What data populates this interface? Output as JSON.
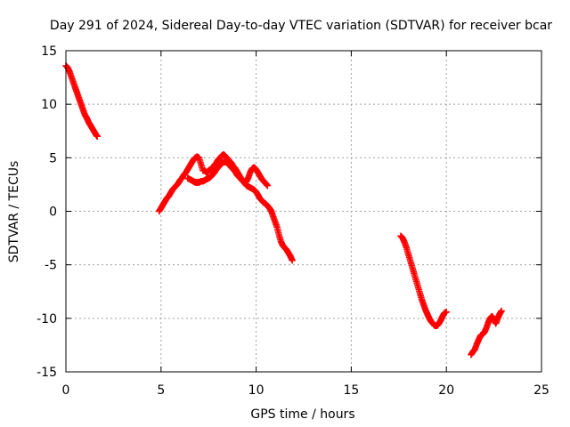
{
  "chart_data": {
    "type": "scatter",
    "title": "Day 291 of 2024, Sidereal Day-to-day VTEC variation (SDTVAR) for receiver bcar",
    "xlabel": "GPS time / hours",
    "ylabel": "SDTVAR / TECUs",
    "xlim": [
      0,
      25
    ],
    "ylim": [
      -15,
      15
    ],
    "xticks": [
      0,
      5,
      10,
      15,
      20,
      25
    ],
    "yticks": [
      -15,
      -10,
      -5,
      0,
      5,
      10,
      15
    ],
    "grid": true,
    "marker": "plus",
    "color": "#ff0000",
    "series": [
      {
        "name": "segment-1",
        "points": [
          [
            0.0,
            13.6
          ],
          [
            0.1,
            13.4
          ],
          [
            0.2,
            13.0
          ],
          [
            0.3,
            12.5
          ],
          [
            0.4,
            12.0
          ],
          [
            0.5,
            11.5
          ],
          [
            0.6,
            11.0
          ],
          [
            0.7,
            10.5
          ],
          [
            0.8,
            10.0
          ],
          [
            0.9,
            9.5
          ],
          [
            1.0,
            9.0
          ],
          [
            1.1,
            8.7
          ],
          [
            1.2,
            8.3
          ],
          [
            1.3,
            8.0
          ],
          [
            1.4,
            7.7
          ],
          [
            1.5,
            7.4
          ],
          [
            1.6,
            7.1
          ],
          [
            1.65,
            7.0
          ]
        ]
      },
      {
        "name": "segment-2",
        "points": [
          [
            4.9,
            0.0
          ],
          [
            5.0,
            0.3
          ],
          [
            5.1,
            0.6
          ],
          [
            5.2,
            0.9
          ],
          [
            5.3,
            1.2
          ],
          [
            5.4,
            1.4
          ],
          [
            5.5,
            1.7
          ],
          [
            5.6,
            2.0
          ],
          [
            5.7,
            2.2
          ],
          [
            5.8,
            2.4
          ],
          [
            5.9,
            2.6
          ],
          [
            6.0,
            2.9
          ],
          [
            6.1,
            3.1
          ],
          [
            6.2,
            3.4
          ],
          [
            6.3,
            3.6
          ],
          [
            6.4,
            3.9
          ],
          [
            6.5,
            4.2
          ],
          [
            6.6,
            4.5
          ],
          [
            6.7,
            4.8
          ],
          [
            6.8,
            5.0
          ],
          [
            6.9,
            5.1
          ],
          [
            7.0,
            5.0
          ],
          [
            7.1,
            4.4
          ],
          [
            7.2,
            3.8
          ],
          [
            7.3,
            3.8
          ],
          [
            7.4,
            3.6
          ],
          [
            7.5,
            3.8
          ],
          [
            7.6,
            3.9
          ],
          [
            7.7,
            4.0
          ],
          [
            7.8,
            4.3
          ],
          [
            7.9,
            4.5
          ],
          [
            8.0,
            4.8
          ],
          [
            8.1,
            5.0
          ],
          [
            8.2,
            5.2
          ],
          [
            8.3,
            5.3
          ],
          [
            8.4,
            5.1
          ],
          [
            8.5,
            4.9
          ],
          [
            8.6,
            4.7
          ],
          [
            8.7,
            4.5
          ],
          [
            8.8,
            4.2
          ],
          [
            8.9,
            4.0
          ],
          [
            9.0,
            3.7
          ],
          [
            9.1,
            3.4
          ],
          [
            9.2,
            3.1
          ],
          [
            9.3,
            2.9
          ],
          [
            9.4,
            2.6
          ],
          [
            9.5,
            2.4
          ],
          [
            9.6,
            2.3
          ],
          [
            9.7,
            2.2
          ],
          [
            9.8,
            2.1
          ],
          [
            9.9,
            2.0
          ],
          [
            10.0,
            1.8
          ],
          [
            10.1,
            1.5
          ],
          [
            10.2,
            1.2
          ],
          [
            10.3,
            1.0
          ],
          [
            10.4,
            0.8
          ],
          [
            10.5,
            0.7
          ],
          [
            10.6,
            0.5
          ],
          [
            10.7,
            0.3
          ],
          [
            10.8,
            0.0
          ],
          [
            10.9,
            -0.5
          ],
          [
            11.0,
            -1.0
          ],
          [
            11.1,
            -1.5
          ],
          [
            11.2,
            -2.2
          ],
          [
            11.3,
            -2.8
          ],
          [
            11.4,
            -3.2
          ],
          [
            11.5,
            -3.4
          ],
          [
            11.6,
            -3.6
          ],
          [
            11.7,
            -3.9
          ],
          [
            11.8,
            -4.2
          ],
          [
            11.9,
            -4.6
          ]
        ]
      },
      {
        "name": "segment-3",
        "points": [
          [
            6.4,
            3.1
          ],
          [
            6.5,
            3.0
          ],
          [
            6.6,
            2.9
          ],
          [
            6.7,
            2.8
          ],
          [
            6.8,
            2.7
          ],
          [
            6.9,
            2.7
          ],
          [
            7.0,
            2.7
          ],
          [
            7.1,
            2.8
          ],
          [
            7.2,
            2.8
          ],
          [
            7.3,
            2.9
          ],
          [
            7.4,
            3.0
          ],
          [
            7.5,
            3.1
          ],
          [
            7.6,
            3.2
          ],
          [
            7.7,
            3.4
          ],
          [
            7.8,
            3.6
          ],
          [
            7.9,
            3.9
          ],
          [
            8.0,
            4.1
          ],
          [
            8.1,
            4.3
          ],
          [
            8.2,
            4.5
          ],
          [
            8.3,
            4.6
          ],
          [
            8.4,
            4.6
          ],
          [
            8.5,
            4.5
          ],
          [
            8.6,
            4.3
          ],
          [
            8.7,
            4.1
          ],
          [
            8.8,
            3.9
          ],
          [
            8.9,
            3.7
          ],
          [
            9.0,
            3.4
          ],
          [
            9.1,
            3.2
          ],
          [
            9.2,
            3.0
          ],
          [
            9.3,
            2.8
          ],
          [
            9.4,
            2.7
          ],
          [
            9.5,
            2.8
          ],
          [
            9.6,
            3.2
          ],
          [
            9.7,
            3.7
          ],
          [
            9.8,
            4.0
          ],
          [
            9.9,
            4.1
          ],
          [
            10.0,
            3.9
          ],
          [
            10.1,
            3.6
          ],
          [
            10.2,
            3.3
          ],
          [
            10.3,
            3.0
          ],
          [
            10.4,
            2.8
          ],
          [
            10.5,
            2.6
          ],
          [
            10.6,
            2.4
          ]
        ]
      },
      {
        "name": "segment-4",
        "points": [
          [
            17.6,
            -2.3
          ],
          [
            17.7,
            -2.5
          ],
          [
            17.8,
            -2.9
          ],
          [
            17.9,
            -3.4
          ],
          [
            18.0,
            -4.0
          ],
          [
            18.1,
            -4.6
          ],
          [
            18.2,
            -5.2
          ],
          [
            18.3,
            -5.8
          ],
          [
            18.4,
            -6.4
          ],
          [
            18.5,
            -7.0
          ],
          [
            18.6,
            -7.6
          ],
          [
            18.7,
            -8.2
          ],
          [
            18.8,
            -8.7
          ],
          [
            18.9,
            -9.2
          ],
          [
            19.0,
            -9.6
          ],
          [
            19.1,
            -10.0
          ],
          [
            19.2,
            -10.3
          ],
          [
            19.3,
            -10.5
          ],
          [
            19.4,
            -10.7
          ],
          [
            19.5,
            -10.7
          ],
          [
            19.6,
            -10.5
          ],
          [
            19.7,
            -10.2
          ],
          [
            19.8,
            -9.8
          ],
          [
            19.9,
            -9.5
          ],
          [
            20.0,
            -9.4
          ]
        ]
      },
      {
        "name": "segment-5",
        "points": [
          [
            21.3,
            -13.4
          ],
          [
            21.4,
            -13.1
          ],
          [
            21.5,
            -12.9
          ],
          [
            21.6,
            -12.4
          ],
          [
            21.7,
            -12.0
          ],
          [
            21.8,
            -11.6
          ],
          [
            21.9,
            -11.5
          ],
          [
            22.0,
            -11.3
          ],
          [
            22.1,
            -10.9
          ],
          [
            22.2,
            -10.4
          ],
          [
            22.3,
            -10.0
          ],
          [
            22.4,
            -9.8
          ],
          [
            22.5,
            -10.1
          ],
          [
            22.6,
            -10.5
          ],
          [
            22.7,
            -10.0
          ],
          [
            22.8,
            -9.6
          ],
          [
            22.9,
            -9.3
          ]
        ]
      }
    ]
  }
}
